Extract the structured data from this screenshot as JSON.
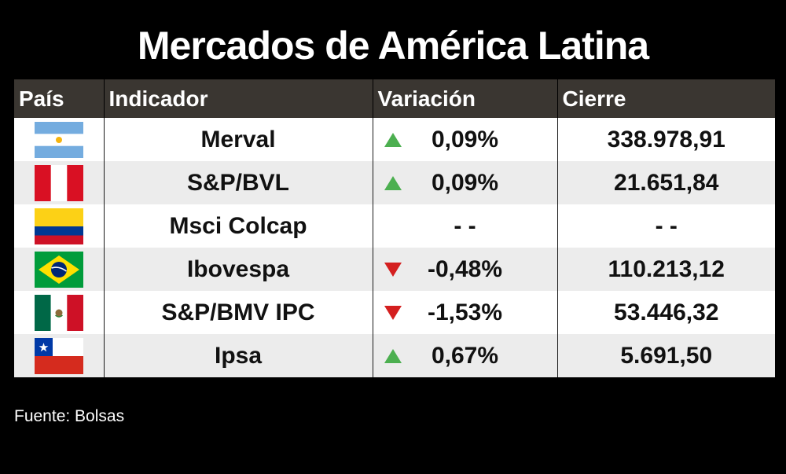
{
  "title": "Mercados de América Latina",
  "headers": {
    "country": "País",
    "indicator": "Indicador",
    "variation": "Variación",
    "close": "Cierre"
  },
  "rows": [
    {
      "flag": "argentina-flag",
      "indicator": "Merval",
      "direction": "up",
      "variation": "0,09%",
      "close": "338.978,91"
    },
    {
      "flag": "peru-flag",
      "indicator": "S&P/BVL",
      "direction": "up",
      "variation": "0,09%",
      "close": "21.651,84"
    },
    {
      "flag": "colombia-flag",
      "indicator": "Msci Colcap",
      "direction": "none",
      "variation": "- -",
      "close": "- -"
    },
    {
      "flag": "brazil-flag",
      "indicator": "Ibovespa",
      "direction": "down",
      "variation": "-0,48%",
      "close": "110.213,12"
    },
    {
      "flag": "mexico-flag",
      "indicator": "S&P/BMV IPC",
      "direction": "down",
      "variation": "-1,53%",
      "close": "53.446,32"
    },
    {
      "flag": "chile-flag",
      "indicator": "Ipsa",
      "direction": "up",
      "variation": "0,67%",
      "close": "5.691,50"
    }
  ],
  "source": "Fuente: Bolsas",
  "colors": {
    "up": "#4caf50",
    "down": "#d41f1f",
    "header_bg": "#3a3631"
  }
}
